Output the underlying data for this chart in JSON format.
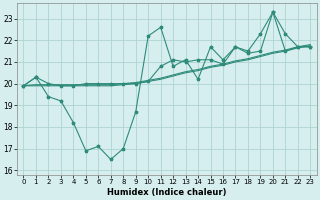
{
  "title": "",
  "xlabel": "Humidex (Indice chaleur)",
  "x": [
    0,
    1,
    2,
    3,
    4,
    5,
    6,
    7,
    8,
    9,
    10,
    11,
    12,
    13,
    14,
    15,
    16,
    17,
    18,
    19,
    20,
    21,
    22,
    23
  ],
  "line_zigzag": [
    19.9,
    20.3,
    19.4,
    19.2,
    18.2,
    16.9,
    17.1,
    16.5,
    17.0,
    18.7,
    22.2,
    22.6,
    20.8,
    21.1,
    20.2,
    21.7,
    21.1,
    21.7,
    21.5,
    22.3,
    23.3,
    21.5,
    21.7,
    21.7
  ],
  "line_upper": [
    19.9,
    20.3,
    20.0,
    19.9,
    19.9,
    20.0,
    20.0,
    20.0,
    20.0,
    20.0,
    20.1,
    20.8,
    21.1,
    21.0,
    21.1,
    21.1,
    20.9,
    21.7,
    21.4,
    21.5,
    23.3,
    22.3,
    21.7,
    21.7
  ],
  "line_trend1": [
    19.9,
    19.9,
    19.9,
    19.9,
    19.9,
    19.9,
    19.9,
    19.9,
    19.95,
    20.0,
    20.1,
    20.2,
    20.35,
    20.5,
    20.6,
    20.75,
    20.85,
    21.0,
    21.1,
    21.25,
    21.4,
    21.5,
    21.65,
    21.75
  ],
  "line_trend2": [
    19.9,
    19.95,
    19.95,
    19.95,
    19.95,
    19.95,
    19.95,
    19.95,
    20.0,
    20.05,
    20.15,
    20.25,
    20.4,
    20.55,
    20.65,
    20.8,
    20.9,
    21.05,
    21.15,
    21.3,
    21.45,
    21.55,
    21.7,
    21.8
  ],
  "ylim": [
    15.8,
    23.7
  ],
  "yticks": [
    16,
    17,
    18,
    19,
    20,
    21,
    22,
    23
  ],
  "xticks": [
    0,
    1,
    2,
    3,
    4,
    5,
    6,
    7,
    8,
    9,
    10,
    11,
    12,
    13,
    14,
    15,
    16,
    17,
    18,
    19,
    20,
    21,
    22,
    23
  ],
  "line_color": "#2e8b7a",
  "bg_color": "#d6eeee",
  "grid_color": "#aed4d4"
}
